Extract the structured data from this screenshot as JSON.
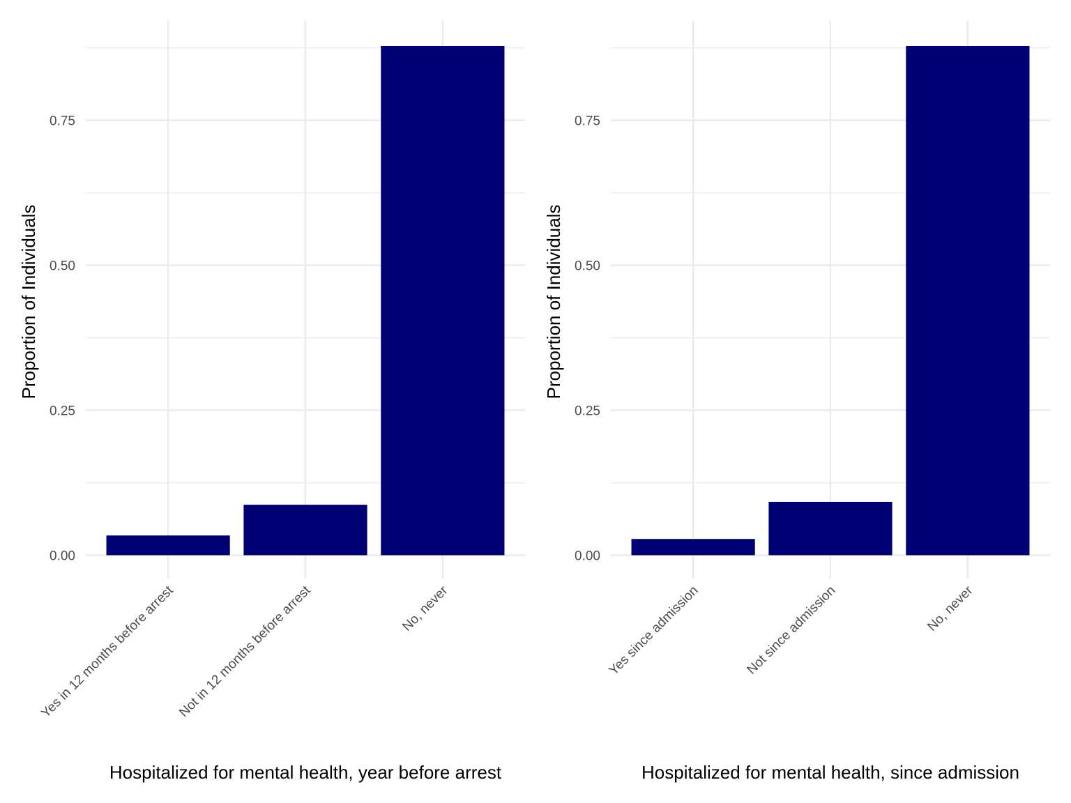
{
  "chart_data": [
    {
      "type": "bar",
      "title": "",
      "xlabel": "Hospitalized for mental health, year before arrest",
      "ylabel": "Proportion of Individuals",
      "categories": [
        "Yes in 12 months before arrest",
        "Not in 12 months before arrest",
        "No, never"
      ],
      "values": [
        0.034,
        0.087,
        0.878
      ],
      "ylim": [
        -0.04,
        0.92
      ],
      "yticks": [
        "0.00",
        "0.25",
        "0.50",
        "0.75"
      ],
      "grid": true,
      "bar_color": "#000075"
    },
    {
      "type": "bar",
      "title": "",
      "xlabel": "Hospitalized for mental health, since admission",
      "ylabel": "Proportion of Individuals",
      "categories": [
        "Yes since admission",
        "Not since admission",
        "No, never"
      ],
      "values": [
        0.028,
        0.092,
        0.878
      ],
      "ylim": [
        -0.04,
        0.92
      ],
      "yticks": [
        "0.00",
        "0.25",
        "0.50",
        "0.75"
      ],
      "grid": true,
      "bar_color": "#000075"
    }
  ]
}
